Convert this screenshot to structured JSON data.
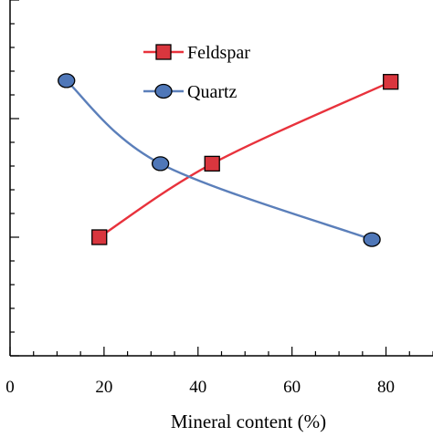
{
  "chart_data": {
    "type": "line",
    "title": "",
    "xlabel": "Mineral content (%)",
    "ylabel": "",
    "xlim": [
      0,
      90
    ],
    "ylim": [
      0,
      3
    ],
    "x_ticks": [
      "0",
      "20",
      "40",
      "60",
      "80"
    ],
    "y_tick_labels_visible": false,
    "grid": false,
    "legend": {
      "placement": "top-center"
    },
    "series": [
      {
        "name": "Feldspar",
        "color": "#d9363e",
        "line_color": "#e8323c",
        "marker": "square",
        "points": [
          {
            "x": 19,
            "y": 1.0
          },
          {
            "x": 43,
            "y": 1.62
          },
          {
            "x": 81,
            "y": 2.31
          }
        ]
      },
      {
        "name": "Quartz",
        "color": "#4f77b8",
        "line_color": "#5b7fba",
        "marker": "circle",
        "points": [
          {
            "x": 12,
            "y": 2.32
          },
          {
            "x": 32,
            "y": 1.62
          },
          {
            "x": 77,
            "y": 0.98
          }
        ]
      }
    ]
  }
}
